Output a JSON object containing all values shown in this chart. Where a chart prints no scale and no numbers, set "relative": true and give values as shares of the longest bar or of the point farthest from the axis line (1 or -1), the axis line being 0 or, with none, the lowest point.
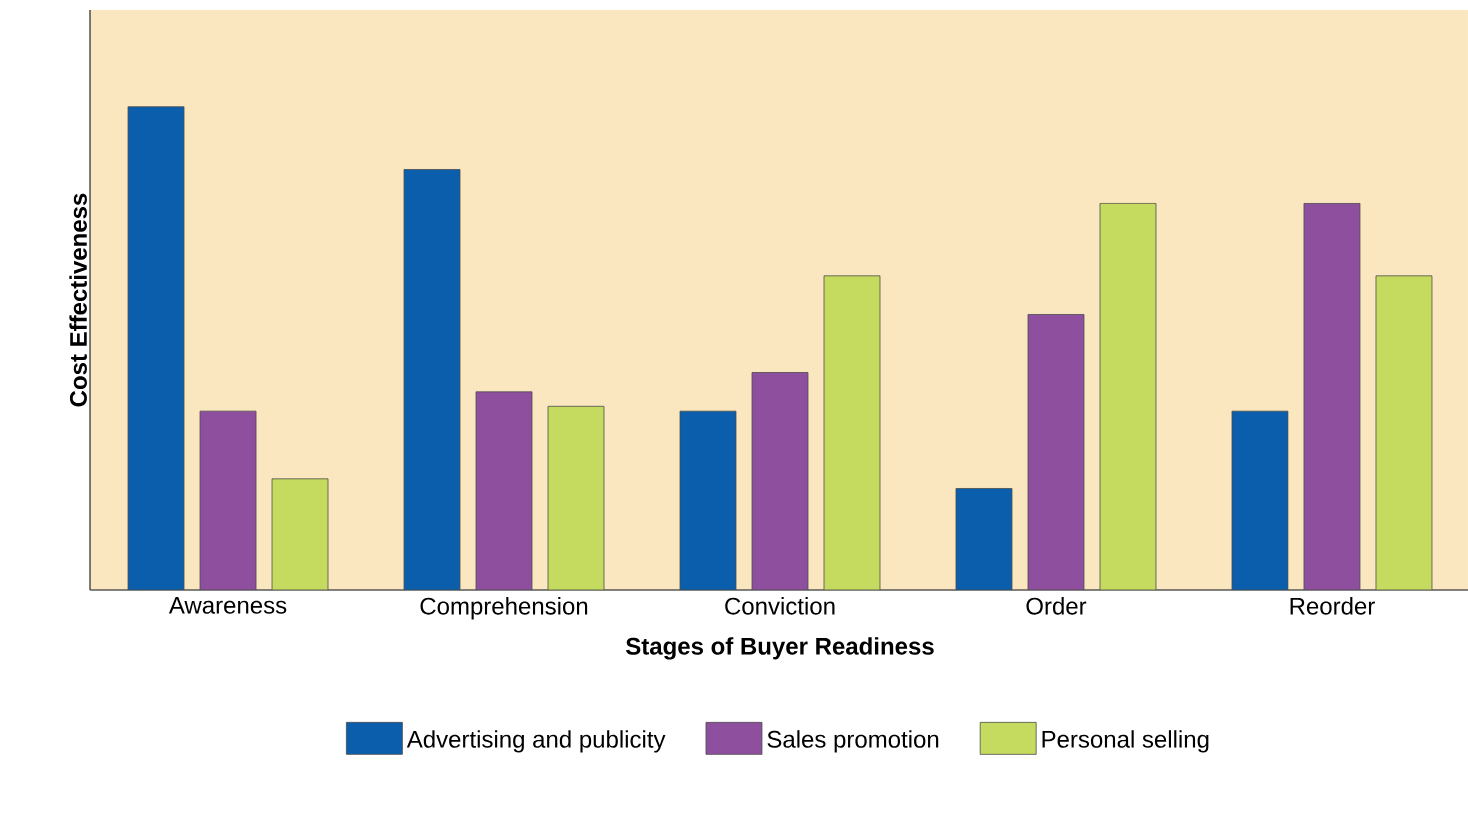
{
  "chart_data": {
    "type": "bar",
    "relative": true,
    "xlabel": "Stages of Buyer Readiness",
    "ylabel": "Cost Effectiveness",
    "categories": [
      "Awareness",
      "Comprehension",
      "Conviction",
      "Order",
      "Reorder"
    ],
    "series": [
      {
        "name": "Advertising and publicity",
        "color": "#0a5eab",
        "values": [
          1,
          0.87,
          0.37,
          0.21,
          0.37
        ]
      },
      {
        "name": "Sales promotion",
        "color": "#8e4f9e",
        "values": [
          0.37,
          0.41,
          0.45,
          0.57,
          0.8
        ]
      },
      {
        "name": "Personal selling",
        "color": "#c5db5f",
        "values": [
          0.23,
          0.38,
          0.65,
          0.8,
          0.65
        ]
      }
    ],
    "legend": "bottom"
  }
}
